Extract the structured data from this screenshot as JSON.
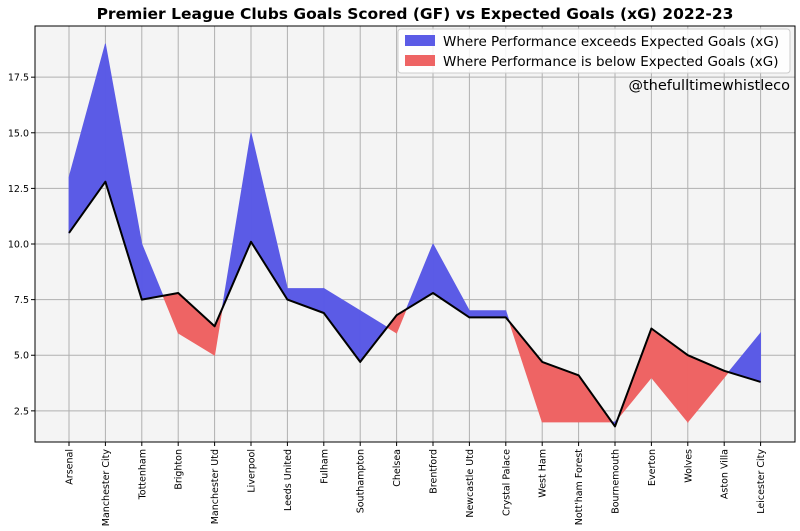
{
  "chart_data": {
    "type": "area",
    "title": "Premier League Clubs Goals Scored (GF) vs Expected Goals (xG) 2022-23",
    "xlabel": "",
    "ylabel": "",
    "ylim": [
      1.1,
      19.8
    ],
    "yticks": [
      2.5,
      5.0,
      7.5,
      10.0,
      12.5,
      15.0,
      17.5
    ],
    "ytick_labels": [
      "2.5",
      "5.0",
      "7.5",
      "10.0",
      "12.5",
      "15.0",
      "17.5"
    ],
    "grid": true,
    "legend_position": "top-right",
    "categories": [
      "Arsenal",
      "Manchester City",
      "Tottenham",
      "Brighton",
      "Manchester Utd",
      "Liverpool",
      "Leeds United",
      "Fulham",
      "Southampton",
      "Chelsea",
      "Brentford",
      "Newcastle Utd",
      "Crystal Palace",
      "West Ham",
      "Nott'ham Forest",
      "Bournemouth",
      "Everton",
      "Wolves",
      "Aston Villa",
      "Leicester City"
    ],
    "series": [
      {
        "values": [
          13,
          19,
          10,
          6,
          5,
          15,
          8,
          8,
          7,
          6,
          10,
          7,
          7,
          2,
          2,
          2,
          4,
          2,
          4,
          6
        ]
      },
      {
        "values": [
          10.5,
          12.8,
          7.5,
          7.8,
          6.3,
          10.1,
          7.5,
          6.9,
          4.7,
          6.8,
          7.8,
          6.7,
          6.7,
          4.7,
          4.1,
          1.8,
          6.2,
          5.0,
          4.3,
          3.8
        ]
      }
    ],
    "legend": {
      "above": "Where Performance exceeds Expected Goals (xG)",
      "below": "Where Performance is below Expected Goals (xG)"
    },
    "colors": {
      "above": "#5b5be6",
      "below": "#ee6464",
      "line": "#000000",
      "plot_bg": "#f4f4f4",
      "grid": "#b0b0b0"
    },
    "annotation": "@thefulltimewhistleco"
  }
}
